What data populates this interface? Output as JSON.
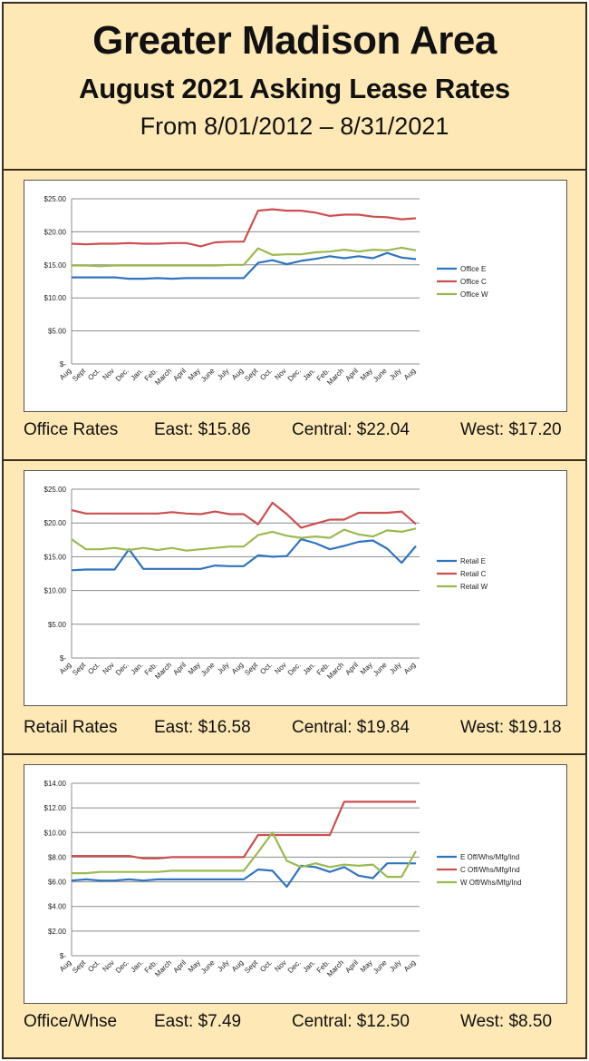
{
  "header": {
    "title": "Greater Madison Area",
    "subtitle": "August 2021 Asking Lease Rates",
    "date_range": "From 8/01/2012 – 8/31/2021"
  },
  "colors": {
    "east": "#2f74bf",
    "central": "#cc4f4f",
    "west": "#9aba50",
    "grid": "#8c8c8c"
  },
  "charts": [
    {
      "label": "Office Rates",
      "east": "East: $15.86",
      "central": "Central: $22.04",
      "west": "West: $17.20"
    },
    {
      "label": "Retail Rates",
      "east": "East: $16.58",
      "central": "Central: $19.84",
      "west": "West: $19.18"
    },
    {
      "label": "Office/Whse",
      "east": "East: $7.49",
      "central": "Central: $12.50",
      "west": "West: $8.50"
    }
  ],
  "chart_data": [
    {
      "type": "line",
      "title": "Office Rates",
      "ylim": [
        0,
        25
      ],
      "yticks": [
        25,
        20,
        15,
        10,
        5,
        0
      ],
      "ytick_labels": [
        "$25.00",
        "$20.00",
        "$15.00",
        "$10.00",
        "$5.00",
        "$-"
      ],
      "categories": [
        "Aug",
        "Sept",
        "Oct.",
        "Nov",
        "Dec.",
        "Jan.",
        "Feb.",
        "March",
        "April",
        "May",
        "June",
        "July",
        "Aug",
        "Sept",
        "Oct.",
        "Nov",
        "Dec.",
        "Jan.",
        "Feb.",
        "March",
        "April",
        "May",
        "June",
        "July",
        "Aug"
      ],
      "series": [
        {
          "name": "Office E",
          "color": "#2f74bf",
          "values": [
            13.1,
            13.1,
            13.1,
            13.1,
            12.9,
            12.9,
            13.0,
            12.9,
            13.0,
            13.0,
            13.0,
            13.0,
            13.0,
            15.3,
            15.7,
            15.1,
            15.6,
            15.9,
            16.3,
            16.0,
            16.3,
            16.0,
            16.8,
            16.1,
            15.86
          ]
        },
        {
          "name": "Office C",
          "color": "#cc4f4f",
          "values": [
            18.2,
            18.1,
            18.2,
            18.2,
            18.3,
            18.2,
            18.2,
            18.3,
            18.3,
            17.8,
            18.4,
            18.5,
            18.5,
            23.2,
            23.4,
            23.2,
            23.2,
            22.9,
            22.4,
            22.6,
            22.6,
            22.3,
            22.2,
            21.9,
            22.04
          ]
        },
        {
          "name": "Office W",
          "color": "#9aba50",
          "values": [
            14.9,
            14.9,
            14.8,
            14.9,
            14.9,
            14.9,
            14.9,
            14.9,
            14.9,
            14.9,
            14.9,
            15.0,
            15.0,
            17.5,
            16.5,
            16.6,
            16.6,
            16.9,
            17.0,
            17.3,
            17.0,
            17.3,
            17.2,
            17.6,
            17.2
          ]
        }
      ]
    },
    {
      "type": "line",
      "title": "Retail Rates",
      "ylim": [
        0,
        25
      ],
      "yticks": [
        25,
        20,
        15,
        10,
        5,
        0
      ],
      "ytick_labels": [
        "$25.00",
        "$20.00",
        "$15.00",
        "$10.00",
        "$5.00",
        "$-"
      ],
      "categories": [
        "Aug",
        "Sept",
        "Oct.",
        "Nov",
        "Dec.",
        "Jan.",
        "Feb.",
        "March",
        "April",
        "May",
        "June",
        "July",
        "Aug",
        "Sept",
        "Oct.",
        "Nov",
        "Dec.",
        "Jan.",
        "Feb.",
        "March",
        "April",
        "May",
        "June",
        "July",
        "Aug"
      ],
      "series": [
        {
          "name": "Retail E",
          "color": "#2f74bf",
          "values": [
            13.0,
            13.1,
            13.1,
            13.1,
            16.1,
            13.2,
            13.2,
            13.2,
            13.2,
            13.2,
            13.7,
            13.6,
            13.6,
            15.2,
            15.0,
            15.1,
            17.6,
            17.0,
            16.1,
            16.6,
            17.2,
            17.4,
            16.2,
            14.1,
            16.58
          ]
        },
        {
          "name": "Retail C",
          "color": "#cc4f4f",
          "values": [
            21.9,
            21.4,
            21.4,
            21.4,
            21.4,
            21.4,
            21.4,
            21.6,
            21.4,
            21.3,
            21.7,
            21.3,
            21.3,
            19.8,
            23.0,
            21.3,
            19.3,
            19.9,
            20.5,
            20.5,
            21.5,
            21.5,
            21.5,
            21.7,
            19.84
          ]
        },
        {
          "name": "Retail W",
          "color": "#9aba50",
          "values": [
            17.6,
            16.1,
            16.1,
            16.3,
            16.0,
            16.3,
            16.0,
            16.3,
            15.9,
            16.1,
            16.3,
            16.5,
            16.5,
            18.2,
            18.7,
            18.1,
            17.8,
            18.0,
            17.8,
            19.0,
            18.3,
            18.0,
            18.9,
            18.7,
            19.18
          ]
        }
      ]
    },
    {
      "type": "line",
      "title": "Office/Whse",
      "ylim": [
        0,
        14
      ],
      "yticks": [
        14,
        12,
        10,
        8,
        6,
        4,
        2,
        0
      ],
      "ytick_labels": [
        "$14.00",
        "$12.00",
        "$10.00",
        "$8.00",
        "$6.00",
        "$4.00",
        "$2.00",
        "$-"
      ],
      "categories": [
        "Aug",
        "Sept",
        "Oct.",
        "Nov",
        "Dec.",
        "Jan.",
        "Feb.",
        "March",
        "April",
        "May",
        "June",
        "July",
        "Aug",
        "Sept",
        "Oct.",
        "Nov",
        "Dec.",
        "Jan.",
        "Feb.",
        "March",
        "April",
        "May",
        "June",
        "July",
        "Aug"
      ],
      "series": [
        {
          "name": "E Off/Whs/Mfg/Ind",
          "color": "#2f74bf",
          "values": [
            6.1,
            6.2,
            6.1,
            6.1,
            6.2,
            6.1,
            6.2,
            6.2,
            6.2,
            6.2,
            6.2,
            6.2,
            6.2,
            7.0,
            6.9,
            5.6,
            7.3,
            7.2,
            6.8,
            7.2,
            6.5,
            6.3,
            7.5,
            7.5,
            7.49
          ]
        },
        {
          "name": "C Off/Whs/Mfg/Ind",
          "color": "#cc4f4f",
          "values": [
            8.1,
            8.1,
            8.1,
            8.1,
            8.1,
            7.9,
            7.9,
            8.0,
            8.0,
            8.0,
            8.0,
            8.0,
            8.0,
            9.8,
            9.8,
            9.8,
            9.8,
            9.8,
            9.8,
            12.5,
            12.5,
            12.5,
            12.5,
            12.5,
            12.5
          ]
        },
        {
          "name": "W Off/Whs/Mfg/Ind",
          "color": "#9aba50",
          "values": [
            6.7,
            6.7,
            6.8,
            6.8,
            6.8,
            6.8,
            6.8,
            6.9,
            6.9,
            6.9,
            6.9,
            6.9,
            6.9,
            8.4,
            10.0,
            7.7,
            7.2,
            7.5,
            7.2,
            7.4,
            7.3,
            7.4,
            6.4,
            6.4,
            8.5
          ]
        }
      ]
    }
  ]
}
